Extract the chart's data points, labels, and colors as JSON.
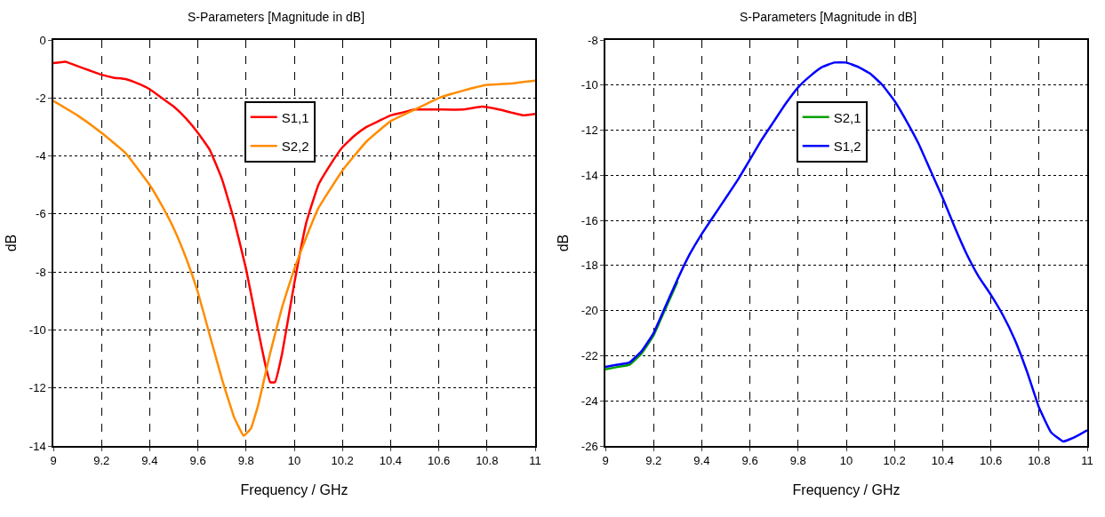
{
  "chart_data": [
    {
      "type": "line",
      "title": "S-Parameters [Magnitude in dB]",
      "xlabel": "Frequency / GHz",
      "ylabel": "dB",
      "xlim": [
        9,
        11
      ],
      "xticks": [
        9,
        9.2,
        9.4,
        9.6,
        9.8,
        10,
        10.2,
        10.4,
        10.6,
        10.8,
        11
      ],
      "ylim": [
        -14,
        0
      ],
      "yticks": [
        -14,
        -12,
        -10,
        -8,
        -6,
        -4,
        -2,
        0
      ],
      "grid": true,
      "legend": "top",
      "line_style": "solid",
      "series": [
        {
          "name": "S1,1",
          "color": "#ff0000",
          "x": [
            9,
            9.05,
            9.1,
            9.15,
            9.2,
            9.25,
            9.3,
            9.35,
            9.4,
            9.45,
            9.5,
            9.55,
            9.6,
            9.65,
            9.7,
            9.75,
            9.8,
            9.85,
            9.88,
            9.9,
            9.92,
            9.95,
            10,
            10.05,
            10.1,
            10.15,
            10.2,
            10.25,
            10.3,
            10.35,
            10.4,
            10.45,
            10.5,
            10.6,
            10.7,
            10.78,
            10.85,
            10.9,
            10.95,
            11
          ],
          "values": [
            -0.8,
            -0.75,
            -0.9,
            -1.05,
            -1.2,
            -1.3,
            -1.35,
            -1.5,
            -1.7,
            -2,
            -2.3,
            -2.7,
            -3.2,
            -3.8,
            -4.8,
            -6.2,
            -7.9,
            -10,
            -11.2,
            -11.8,
            -11.8,
            -10.8,
            -8.4,
            -6.3,
            -5,
            -4.3,
            -3.7,
            -3.3,
            -3,
            -2.8,
            -2.6,
            -2.5,
            -2.4,
            -2.4,
            -2.4,
            -2.3,
            -2.4,
            -2.5,
            -2.6,
            -2.55
          ]
        },
        {
          "name": "S2,2",
          "color": "#ff8c00",
          "x": [
            9,
            9.1,
            9.2,
            9.3,
            9.4,
            9.45,
            9.5,
            9.55,
            9.6,
            9.65,
            9.7,
            9.75,
            9.79,
            9.82,
            9.85,
            9.9,
            9.95,
            10,
            10.05,
            10.1,
            10.2,
            10.3,
            10.4,
            10.5,
            10.6,
            10.7,
            10.8,
            10.9,
            11
          ],
          "values": [
            -2.1,
            -2.6,
            -3.2,
            -3.9,
            -5,
            -5.7,
            -6.5,
            -7.5,
            -8.7,
            -10.2,
            -11.7,
            -13,
            -13.65,
            -13.4,
            -12.6,
            -10.8,
            -9.2,
            -7.9,
            -6.8,
            -5.8,
            -4.5,
            -3.5,
            -2.8,
            -2.4,
            -2,
            -1.75,
            -1.55,
            -1.5,
            -1.4
          ]
        }
      ]
    },
    {
      "type": "line",
      "title": "S-Parameters [Magnitude in dB]",
      "xlabel": "Frequency / GHz",
      "ylabel": "dB",
      "xlim": [
        9,
        11
      ],
      "xticks": [
        9,
        9.2,
        9.4,
        9.6,
        9.8,
        10,
        10.2,
        10.4,
        10.6,
        10.8,
        11
      ],
      "ylim": [
        -26,
        -8
      ],
      "yticks": [
        -26,
        -24,
        -22,
        -20,
        -18,
        -16,
        -14,
        -12,
        -10,
        -8
      ],
      "grid": true,
      "legend": "top",
      "line_style": "solid",
      "series": [
        {
          "name": "S2,1",
          "color": "#00a000",
          "x": [
            9,
            9.05,
            9.1,
            9.15,
            9.2,
            9.25,
            9.3
          ],
          "values": [
            -22.6,
            -22.5,
            -22.4,
            -21.9,
            -21.1,
            -19.9,
            -18.7
          ]
        },
        {
          "name": "S1,2",
          "color": "#0000ff",
          "x": [
            9,
            9.05,
            9.1,
            9.15,
            9.2,
            9.25,
            9.3,
            9.35,
            9.4,
            9.45,
            9.5,
            9.55,
            9.6,
            9.65,
            9.7,
            9.75,
            9.8,
            9.85,
            9.9,
            9.95,
            10,
            10.05,
            10.1,
            10.15,
            10.2,
            10.25,
            10.3,
            10.35,
            10.4,
            10.45,
            10.5,
            10.55,
            10.6,
            10.65,
            10.7,
            10.75,
            10.8,
            10.85,
            10.9,
            10.95,
            11
          ],
          "values": [
            -22.5,
            -22.4,
            -22.3,
            -21.8,
            -21,
            -19.8,
            -18.6,
            -17.5,
            -16.6,
            -15.8,
            -15,
            -14.2,
            -13.3,
            -12.4,
            -11.6,
            -10.8,
            -10.1,
            -9.6,
            -9.2,
            -9,
            -9,
            -9.2,
            -9.5,
            -10,
            -10.7,
            -11.6,
            -12.6,
            -13.8,
            -15,
            -16.3,
            -17.5,
            -18.5,
            -19.3,
            -20.2,
            -21.3,
            -22.7,
            -24.3,
            -25.4,
            -25.8,
            -25.6,
            -25.3
          ]
        }
      ]
    }
  ]
}
